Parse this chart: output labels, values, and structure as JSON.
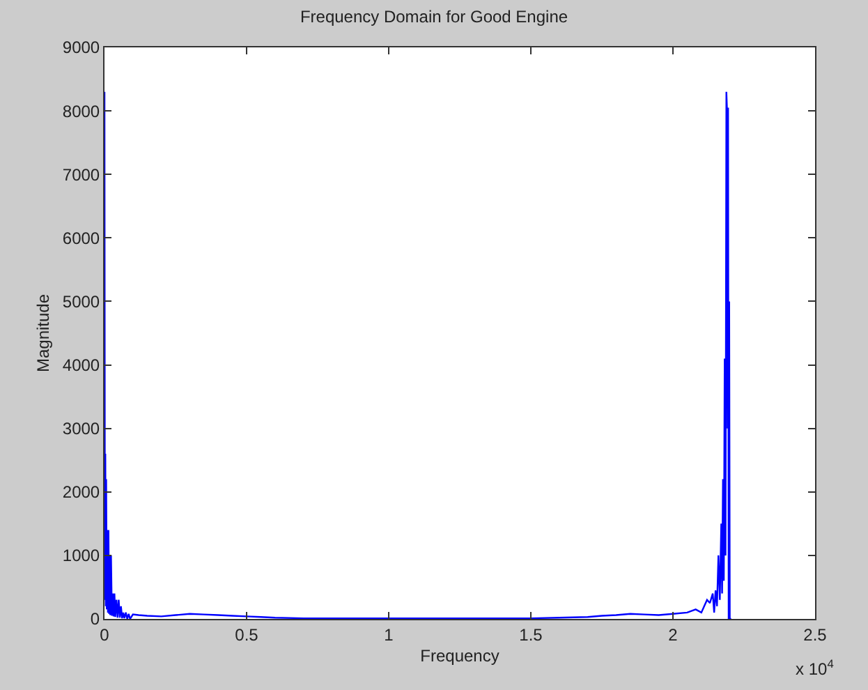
{
  "chart_data": {
    "type": "line",
    "title": "Frequency Domain for Good Engine",
    "xlabel": "Frequency",
    "ylabel": "Magnitude",
    "annotations": [
      "x 10$^{4}$"
    ],
    "x": [
      0,
      0.0015,
      0.003,
      0.0045,
      0.006,
      0.008,
      0.01,
      0.012,
      0.014,
      0.016,
      0.018,
      0.02,
      0.023,
      0.026,
      0.029,
      0.032,
      0.035,
      0.038,
      0.042,
      0.046,
      0.05,
      0.054,
      0.058,
      0.062,
      0.066,
      0.07,
      0.075,
      0.08,
      0.085,
      0.09,
      0.1,
      0.12,
      0.15,
      0.2,
      0.25,
      0.3,
      0.35,
      0.4,
      0.45,
      0.5,
      0.55,
      0.6,
      0.7,
      0.8,
      0.9,
      1.0,
      1.1,
      1.2,
      1.3,
      1.4,
      1.5,
      1.6,
      1.7,
      1.75,
      1.8,
      1.85,
      1.9,
      1.95,
      2.0,
      2.05,
      2.08,
      2.1,
      2.11,
      2.12,
      2.13,
      2.14,
      2.145,
      2.15,
      2.155,
      2.16,
      2.165,
      2.17,
      2.173,
      2.176,
      2.179,
      2.182,
      2.185,
      2.188,
      2.19,
      2.192,
      2.194,
      2.196,
      2.198,
      2.2,
      2.202,
      2.205
    ],
    "series": [
      {
        "color": "#0000ff",
        "values": [
          8300,
          300,
          2600,
          200,
          2200,
          150,
          1400,
          100,
          1400,
          80,
          1000,
          60,
          1000,
          50,
          400,
          40,
          400,
          30,
          300,
          20,
          300,
          20,
          200,
          10,
          100,
          10,
          100,
          0,
          80,
          0,
          70,
          60,
          50,
          40,
          60,
          80,
          70,
          60,
          50,
          40,
          30,
          20,
          10,
          10,
          10,
          10,
          10,
          10,
          10,
          10,
          10,
          20,
          30,
          50,
          60,
          80,
          70,
          60,
          80,
          100,
          150,
          100,
          200,
          300,
          250,
          400,
          100,
          450,
          200,
          1000,
          300,
          1500,
          400,
          2200,
          600,
          4100,
          1000,
          8300,
          8050,
          3000,
          8050,
          0,
          5000,
          0,
          0,
          0
        ]
      }
    ],
    "xlim": [
      0,
      2.5
    ],
    "ylim": [
      0,
      9000
    ],
    "xticks": [
      0,
      0.5,
      1,
      1.5,
      2,
      2.5
    ],
    "yticks": [
      0,
      1000,
      2000,
      3000,
      4000,
      5000,
      6000,
      7000,
      8000,
      9000
    ],
    "line_style": "solid",
    "marker": "none"
  }
}
